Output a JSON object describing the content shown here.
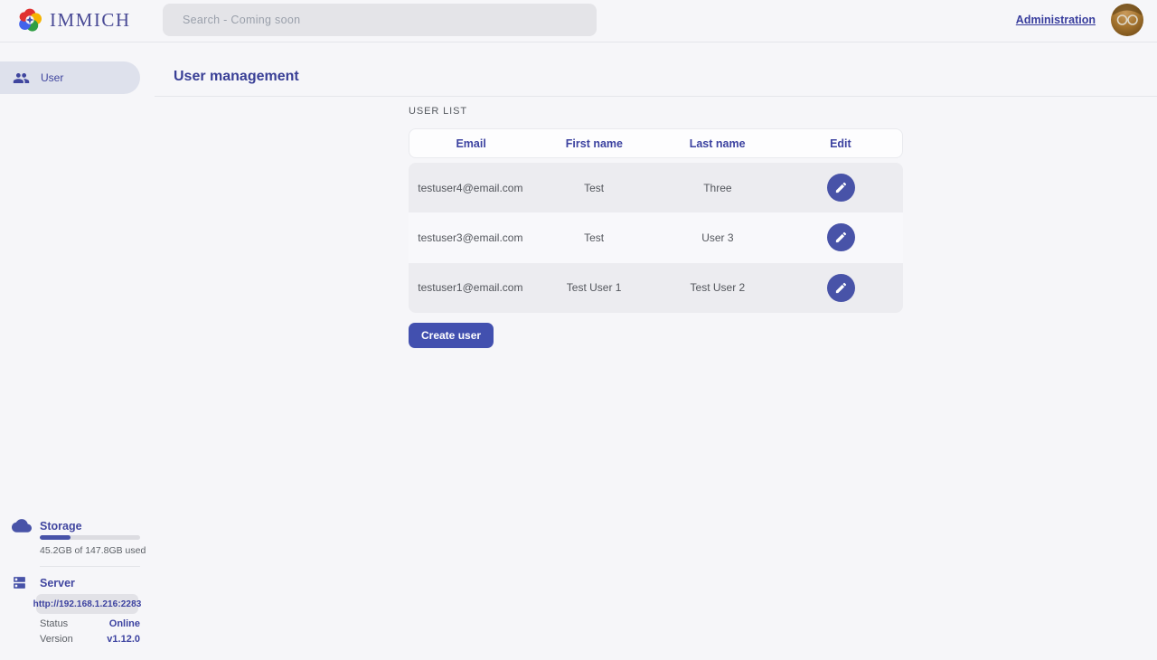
{
  "navbar": {
    "logo_text": "IMMICH",
    "search": {
      "placeholder": "Search - Coming soon"
    },
    "administration_label": "Administration"
  },
  "sidebar": {
    "items": [
      {
        "label": "User"
      }
    ],
    "storage": {
      "title": "Storage",
      "usage_text": "45.2GB of 147.8GB used",
      "percent_used": 30.6
    },
    "server": {
      "title": "Server",
      "url": "http://192.168.1.216:2283",
      "status_label": "Status",
      "status_value": "Online",
      "version_label": "Version",
      "version_value": "v1.12.0"
    }
  },
  "main": {
    "title": "User management",
    "section_label": "USER LIST",
    "table": {
      "headers": [
        "Email",
        "First name",
        "Last name",
        "Edit"
      ],
      "rows": [
        {
          "email": "testuser4@email.com",
          "first_name": "Test",
          "last_name": "Three"
        },
        {
          "email": "testuser3@email.com",
          "first_name": "Test",
          "last_name": "User 3"
        },
        {
          "email": "testuser1@email.com",
          "first_name": "Test User 1",
          "last_name": "Test User 2"
        }
      ]
    },
    "create_user_label": "Create user"
  },
  "colors": {
    "primary": "#4250af",
    "accent_fill": "#4853a8",
    "online": "#3c42a0"
  }
}
